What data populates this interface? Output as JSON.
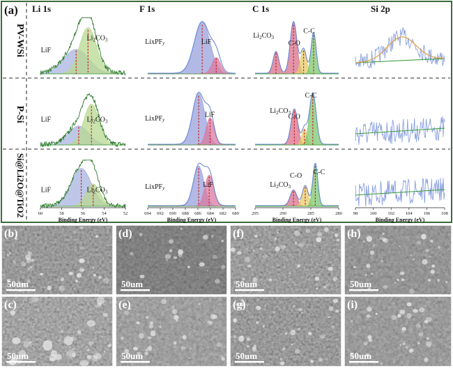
{
  "panel_a": {
    "letter": "(a)",
    "columns": [
      "Li 1s",
      "F 1s",
      "C 1s",
      "Si 2p"
    ],
    "rows": [
      {
        "label": "PV-WSi",
        "peaks": [
          [
            "LiF",
            "Li2CO3"
          ],
          [
            "LixPFy",
            "LiF"
          ],
          [
            "Li2CO3",
            "C-O",
            "C-C"
          ],
          []
        ]
      },
      {
        "label": "P-Si",
        "peaks": [
          [
            "LiF",
            "Li2CO3"
          ],
          [
            "LixPFy",
            "LiF"
          ],
          [
            "Li2CO3",
            "C-O",
            "C-C"
          ],
          []
        ]
      },
      {
        "label": "Si@Li2O@TiO2",
        "peaks": [
          [
            "LiF",
            "Li2CO3"
          ],
          [
            "LixPFy",
            "LiF"
          ],
          [
            "Li2CO3",
            "C-O",
            "C-C"
          ],
          []
        ]
      }
    ],
    "xlabel": "Binding Energy (eV)",
    "ticks": [
      [
        "60",
        "58",
        "56",
        "54",
        "52"
      ],
      [
        "694",
        "692",
        "690",
        "688",
        "686",
        "684",
        "682",
        "680"
      ],
      [
        "295",
        "290",
        "285",
        "280"
      ],
      [
        "98",
        "100",
        "102",
        "104",
        "106",
        "108"
      ]
    ]
  },
  "sem": [
    {
      "letter": "(b)",
      "scale": "50um"
    },
    {
      "letter": "(d)",
      "scale": "50um"
    },
    {
      "letter": "(f)",
      "scale": "50um"
    },
    {
      "letter": "(h)",
      "scale": "50um"
    },
    {
      "letter": "(c)",
      "scale": "50um"
    },
    {
      "letter": "(e)",
      "scale": "50um"
    },
    {
      "letter": "(g)",
      "scale": "50um"
    },
    {
      "letter": "(i)",
      "scale": "50um"
    }
  ],
  "colors": {
    "frame": "#3b6b3b",
    "envelope": "#6b8ad6",
    "lif": "#a8b4e0",
    "li2co3": "#b8d890",
    "lixpfy": "#9aa2dc",
    "lif_f": "#d87aa0",
    "c_li2co3": "#d8708c",
    "c_co": "#e6cc6a",
    "c_cc": "#7cc870",
    "si_noise": "#8aa0e0",
    "si_fit": "#e0a040",
    "baseline": "#3a9a3a",
    "dash": "#d02020"
  }
}
